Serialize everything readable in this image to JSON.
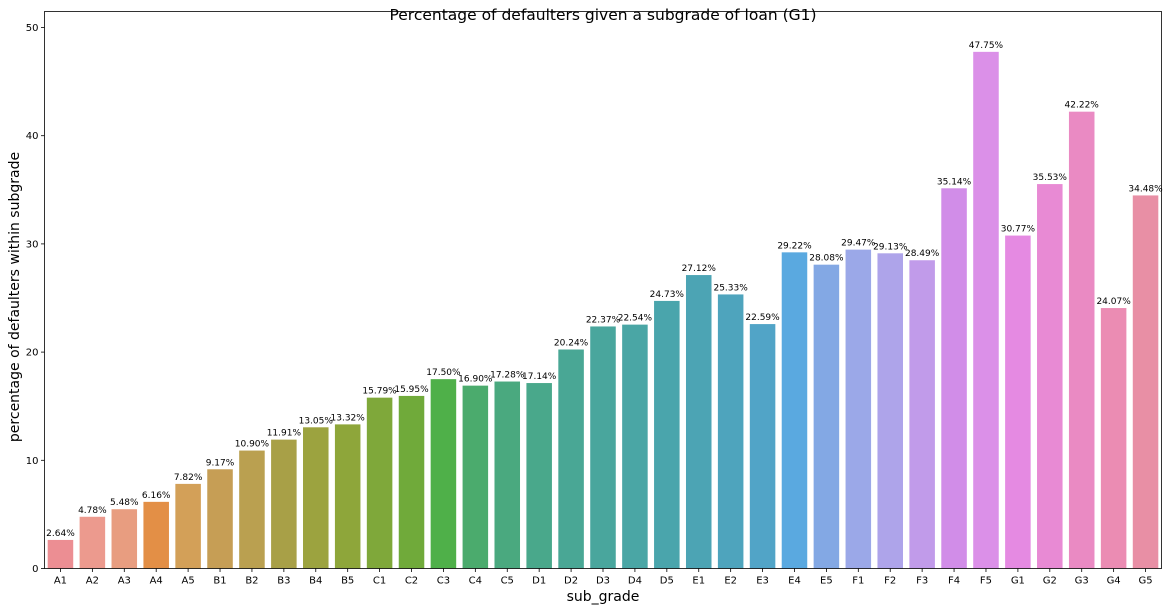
{
  "chart_data": {
    "type": "bar",
    "title": "Percentage of defaulters given a subgrade of loan (G1)",
    "xlabel": "sub_grade",
    "ylabel": "percentage of defaulters within subgrade",
    "ylim": [
      0,
      50
    ],
    "yticks": [
      0,
      10,
      20,
      30,
      40,
      50
    ],
    "grid": false,
    "categories": [
      "A1",
      "A2",
      "A3",
      "A4",
      "A5",
      "B1",
      "B2",
      "B3",
      "B4",
      "B5",
      "C1",
      "C2",
      "C3",
      "C4",
      "C5",
      "D1",
      "D2",
      "D3",
      "D4",
      "D5",
      "E1",
      "E2",
      "E3",
      "E4",
      "E5",
      "F1",
      "F2",
      "F3",
      "F4",
      "F5",
      "G1",
      "G2",
      "G3",
      "G4",
      "G5"
    ],
    "values": [
      2.64,
      4.78,
      5.48,
      6.16,
      7.82,
      9.17,
      10.9,
      11.91,
      13.05,
      13.32,
      15.79,
      15.95,
      17.5,
      16.9,
      17.28,
      17.14,
      20.24,
      22.37,
      22.54,
      24.73,
      27.12,
      25.33,
      22.59,
      29.22,
      28.08,
      29.47,
      29.13,
      28.49,
      35.14,
      47.75,
      30.77,
      35.53,
      42.22,
      24.07,
      34.48
    ],
    "data_labels": [
      "2.64%",
      "4.78%",
      "5.48%",
      "6.16%",
      "7.82%",
      "9.17%",
      "10.90%",
      "11.91%",
      "13.05%",
      "13.32%",
      "15.79%",
      "15.95%",
      "17.50%",
      "16.90%",
      "17.28%",
      "17.14%",
      "20.24%",
      "22.37%",
      "22.54%",
      "24.73%",
      "27.12%",
      "25.33%",
      "22.59%",
      "29.22%",
      "28.08%",
      "29.47%",
      "29.13%",
      "28.49%",
      "35.14%",
      "47.75%",
      "30.77%",
      "35.53%",
      "42.22%",
      "24.07%",
      "34.48%"
    ],
    "colors": [
      "#ec8e93",
      "#ec9a8e",
      "#e89d80",
      "#e38f46",
      "#d3a058",
      "#c69e55",
      "#baa050",
      "#a8a047",
      "#9ca33f",
      "#8ea63a",
      "#7fa83a",
      "#70aa3a",
      "#4fb049",
      "#4bab6d",
      "#4aa97f",
      "#49a88b",
      "#49a795",
      "#49a69d",
      "#4aa6a5",
      "#4aa5ac",
      "#4ca4b4",
      "#4ea4bd",
      "#51a4c7",
      "#5aa9e0",
      "#83a8e4",
      "#9ba8e8",
      "#aea4ea",
      "#c19bea",
      "#d18de8",
      "#db90e8",
      "#e58ae2",
      "#e88ad4",
      "#ea8ac3",
      "#eb8cb3",
      "#e88fa5"
    ]
  }
}
